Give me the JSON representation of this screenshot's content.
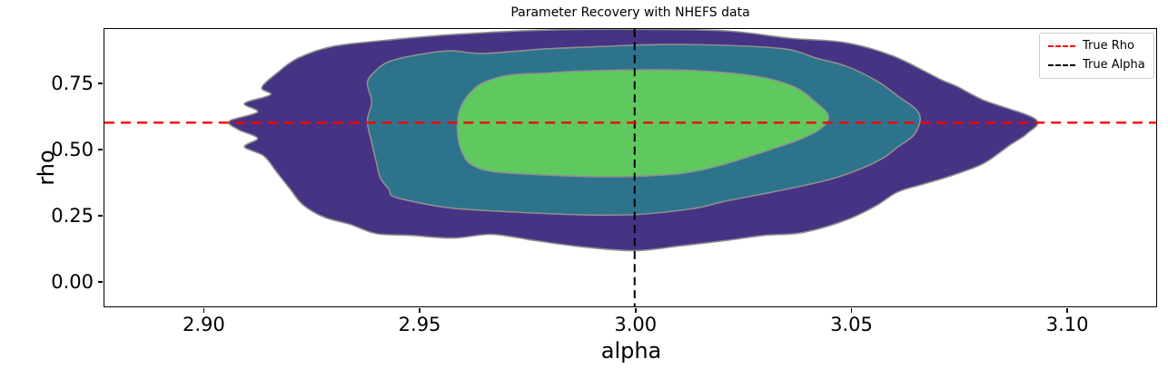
{
  "title": "Parameter Recovery with NHEFS data",
  "legend": {
    "position": "upper-right",
    "entries": [
      {
        "label": "True Rho",
        "color": "#ff0000",
        "style": "dashed"
      },
      {
        "label": "True Alpha",
        "color": "#000000",
        "style": "dashed"
      }
    ]
  },
  "chart_data": {
    "type": "kde_contour",
    "title": "Parameter Recovery with NHEFS data",
    "xlabel": "alpha",
    "ylabel": "rho",
    "xlim": [
      2.877,
      3.121
    ],
    "ylim": [
      -0.099,
      0.956
    ],
    "grid": false,
    "xticks": {
      "values": [
        2.9,
        2.95,
        3.0,
        3.05,
        3.1
      ],
      "labels": [
        "2.90",
        "2.95",
        "3.00",
        "3.05",
        "3.10"
      ]
    },
    "yticks": {
      "values": [
        0.0,
        0.25,
        0.5,
        0.75
      ],
      "labels": [
        "0.00",
        "0.25",
        "0.50",
        "0.75"
      ]
    },
    "hline": {
      "y": 0.6,
      "label": "True Rho",
      "color": "#ff0000",
      "dash": [
        11,
        7
      ],
      "width": 2.4
    },
    "vline": {
      "x": 3.0,
      "label": "True Alpha",
      "color": "#000000",
      "dash": [
        9,
        5.5
      ],
      "width": 2
    },
    "outline_color": "#8f8f8f",
    "levels": [
      {
        "name": "outer",
        "fill": "#463384",
        "points": [
          [
            2.906,
            0.606
          ],
          [
            2.9125,
            0.64
          ],
          [
            2.9095,
            0.673
          ],
          [
            2.9155,
            0.706
          ],
          [
            2.9135,
            0.733
          ],
          [
            2.917,
            0.788
          ],
          [
            2.922,
            0.846
          ],
          [
            2.93,
            0.89
          ],
          [
            2.941,
            0.911
          ],
          [
            2.952,
            0.928
          ],
          [
            2.965,
            0.942
          ],
          [
            2.979,
            0.952
          ],
          [
            3.0,
            0.955
          ],
          [
            3.021,
            0.949
          ],
          [
            3.036,
            0.921
          ],
          [
            3.049,
            0.904
          ],
          [
            3.06,
            0.853
          ],
          [
            3.071,
            0.764
          ],
          [
            3.075,
            0.736
          ],
          [
            3.081,
            0.685
          ],
          [
            3.093,
            0.613
          ],
          [
            3.091,
            0.558
          ],
          [
            3.087,
            0.514
          ],
          [
            3.081,
            0.445
          ],
          [
            3.074,
            0.401
          ],
          [
            3.067,
            0.366
          ],
          [
            3.061,
            0.336
          ],
          [
            3.056,
            0.284
          ],
          [
            3.049,
            0.229
          ],
          [
            3.039,
            0.182
          ],
          [
            3.03,
            0.171
          ],
          [
            3.021,
            0.151
          ],
          [
            3.01,
            0.13
          ],
          [
            3.0,
            0.113
          ],
          [
            2.988,
            0.127
          ],
          [
            2.977,
            0.151
          ],
          [
            2.967,
            0.175
          ],
          [
            2.958,
            0.161
          ],
          [
            2.948,
            0.171
          ],
          [
            2.94,
            0.178
          ],
          [
            2.934,
            0.213
          ],
          [
            2.928,
            0.24
          ],
          [
            2.923,
            0.288
          ],
          [
            2.92,
            0.349
          ],
          [
            2.917,
            0.411
          ],
          [
            2.914,
            0.473
          ],
          [
            2.9095,
            0.508
          ],
          [
            2.9125,
            0.541
          ],
          [
            2.908,
            0.574
          ]
        ]
      },
      {
        "name": "middle",
        "fill": "#2d738c",
        "points": [
          [
            2.938,
            0.606
          ],
          [
            2.939,
            0.678
          ],
          [
            2.938,
            0.753
          ],
          [
            2.94,
            0.798
          ],
          [
            2.943,
            0.832
          ],
          [
            2.949,
            0.856
          ],
          [
            2.957,
            0.873
          ],
          [
            2.965,
            0.863
          ],
          [
            2.979,
            0.88
          ],
          [
            2.993,
            0.89
          ],
          [
            3.007,
            0.897
          ],
          [
            3.021,
            0.894
          ],
          [
            3.035,
            0.88
          ],
          [
            3.042,
            0.846
          ],
          [
            3.049,
            0.815
          ],
          [
            3.056,
            0.76
          ],
          [
            3.061,
            0.702
          ],
          [
            3.066,
            0.634
          ],
          [
            3.065,
            0.558
          ],
          [
            3.061,
            0.507
          ],
          [
            3.058,
            0.469
          ],
          [
            3.053,
            0.428
          ],
          [
            3.046,
            0.387
          ],
          [
            3.039,
            0.36
          ],
          [
            3.032,
            0.336
          ],
          [
            3.021,
            0.301
          ],
          [
            3.014,
            0.274
          ],
          [
            3.0,
            0.25
          ],
          [
            2.986,
            0.25
          ],
          [
            2.972,
            0.26
          ],
          [
            2.958,
            0.274
          ],
          [
            2.95,
            0.295
          ],
          [
            2.944,
            0.319
          ],
          [
            2.943,
            0.346
          ],
          [
            2.941,
            0.39
          ],
          [
            2.94,
            0.455
          ],
          [
            2.939,
            0.524
          ]
        ]
      },
      {
        "name": "inner",
        "fill": "#5fc95f",
        "points": [
          [
            2.959,
            0.617
          ],
          [
            2.96,
            0.671
          ],
          [
            2.962,
            0.716
          ],
          [
            2.965,
            0.753
          ],
          [
            2.971,
            0.781
          ],
          [
            2.979,
            0.788
          ],
          [
            2.986,
            0.795
          ],
          [
            3.0,
            0.801
          ],
          [
            3.014,
            0.798
          ],
          [
            3.028,
            0.777
          ],
          [
            3.037,
            0.736
          ],
          [
            3.042,
            0.678
          ],
          [
            3.045,
            0.623
          ],
          [
            3.043,
            0.575
          ],
          [
            3.038,
            0.534
          ],
          [
            3.032,
            0.5
          ],
          [
            3.023,
            0.452
          ],
          [
            3.015,
            0.418
          ],
          [
            3.007,
            0.401
          ],
          [
            2.993,
            0.394
          ],
          [
            2.979,
            0.401
          ],
          [
            2.967,
            0.414
          ],
          [
            2.962,
            0.442
          ],
          [
            2.96,
            0.486
          ],
          [
            2.959,
            0.548
          ]
        ]
      }
    ]
  }
}
